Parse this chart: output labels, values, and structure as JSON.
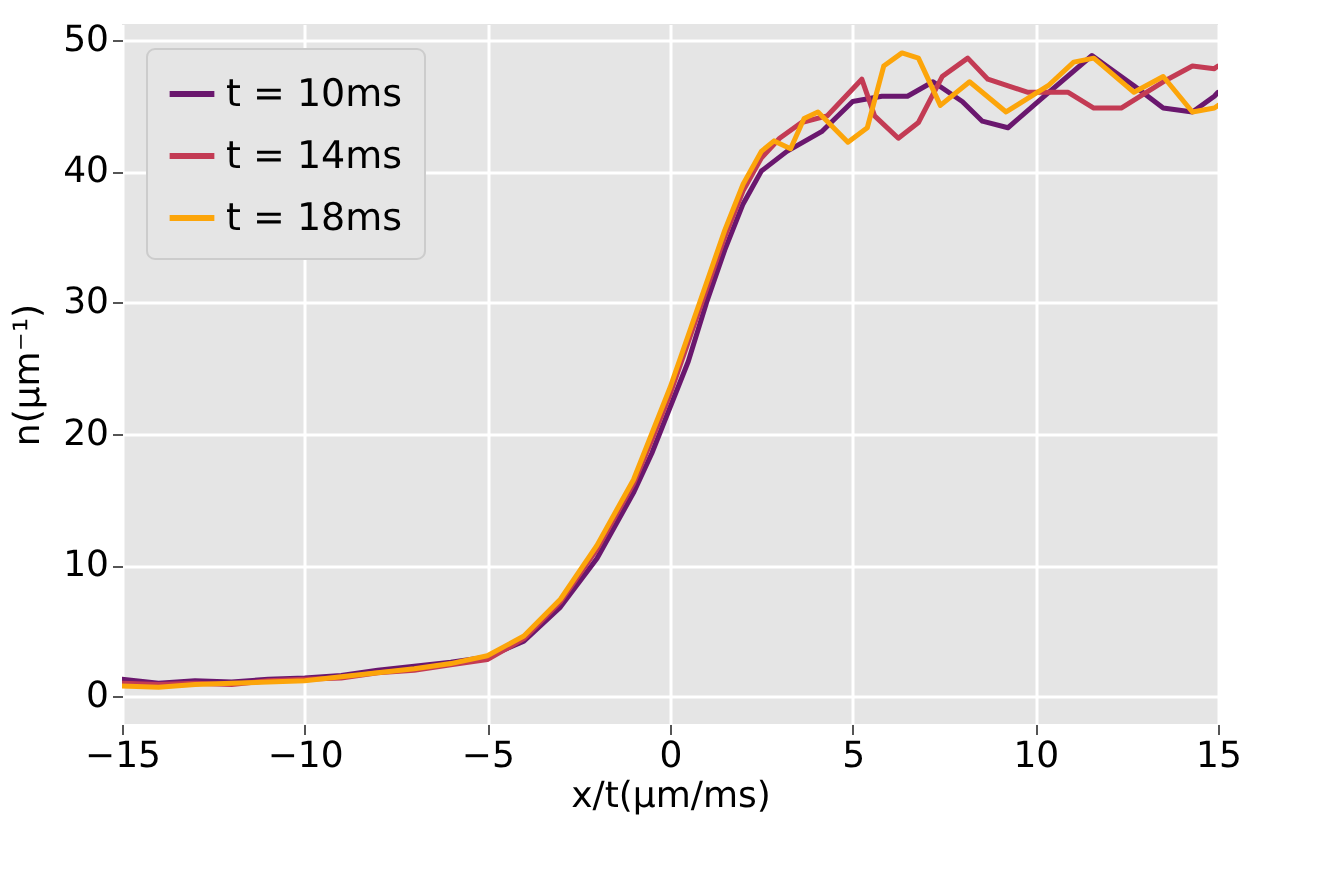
{
  "chart_data": {
    "type": "line",
    "xlabel": "x/t(μm/ms)",
    "ylabel": "n(μm⁻¹)",
    "xlim": [
      -15,
      15
    ],
    "ylim": [
      -2.1,
      51.2
    ],
    "xticks": [
      -15,
      -10,
      -5,
      0,
      5,
      10,
      15
    ],
    "yticks": [
      0,
      10,
      20,
      30,
      40,
      50
    ],
    "grid": true,
    "legend": "top left",
    "line_style": "solid",
    "series": [
      {
        "name": "t = 10ms",
        "color": "#6a176e",
        "x": [
          -15,
          -14,
          -13,
          -12,
          -11,
          -10,
          -9,
          -8,
          -7,
          -6,
          -5,
          -4,
          -3,
          -2,
          -1,
          -0.5,
          0,
          0.5,
          1,
          1.5,
          2,
          2.5,
          3.2,
          4.15,
          5.0,
          5.8,
          6.5,
          7.2,
          8.0,
          8.55,
          9.25,
          10.2,
          11.55,
          12.7,
          13.5,
          14.3,
          14.9,
          15
        ],
        "values": [
          1.3,
          1.0,
          1.2,
          1.1,
          1.3,
          1.4,
          1.6,
          2.0,
          2.3,
          2.6,
          3.0,
          4.2,
          6.8,
          10.5,
          15.5,
          18.5,
          22,
          25.5,
          30,
          34,
          37.5,
          40,
          41.5,
          43,
          45.3,
          45.7,
          45.7,
          46.8,
          45.3,
          43.8,
          43.3,
          45.6,
          48.8,
          46.5,
          44.8,
          44.5,
          45.7,
          46
        ]
      },
      {
        "name": "t = 14ms",
        "color": "#c33b54",
        "x": [
          -15,
          -14,
          -13,
          -12,
          -11,
          -10,
          -9,
          -8,
          -7,
          -6,
          -5,
          -4,
          -3,
          -2,
          -1,
          -0.5,
          0,
          0.5,
          1,
          1.5,
          2,
          2.5,
          3.0,
          3.6,
          4.3,
          5.25,
          5.6,
          6.25,
          6.8,
          7.45,
          8.15,
          8.7,
          9.8,
          10.9,
          11.6,
          12.35,
          13.5,
          14.3,
          14.9,
          15
        ],
        "values": [
          1.0,
          0.9,
          1.0,
          0.9,
          1.2,
          1.3,
          1.4,
          1.8,
          2.0,
          2.4,
          2.8,
          4.4,
          7.2,
          11.2,
          16.2,
          19.5,
          23,
          27,
          31,
          35,
          38.5,
          41,
          42.5,
          43.7,
          44.2,
          47,
          44.2,
          42.5,
          43.7,
          47.2,
          48.6,
          47,
          46,
          46,
          44.8,
          44.8,
          46.8,
          48,
          47.8,
          48
        ]
      },
      {
        "name": "t = 18ms",
        "color": "#fca50a",
        "x": [
          -15,
          -14,
          -13,
          -12,
          -11,
          -10,
          -9,
          -8,
          -7,
          -6,
          -5,
          -4,
          -3,
          -2,
          -1,
          -0.5,
          0,
          0.5,
          1,
          1.5,
          2,
          2.5,
          2.85,
          3.3,
          3.67,
          4.05,
          4.87,
          5.4,
          5.85,
          6.35,
          6.8,
          7.4,
          8.2,
          9.2,
          10.35,
          11.05,
          11.6,
          12.7,
          13.5,
          14.3,
          14.9,
          15
        ],
        "values": [
          0.8,
          0.7,
          0.9,
          1.0,
          1.1,
          1.2,
          1.5,
          1.8,
          2.1,
          2.5,
          3.1,
          4.6,
          7.4,
          11.5,
          16.5,
          20,
          23.5,
          27.5,
          31.5,
          35.5,
          39,
          41.5,
          42.3,
          41.7,
          44,
          44.5,
          42.2,
          43.3,
          48,
          49,
          48.6,
          45,
          46.8,
          44.5,
          46.5,
          48.3,
          48.6,
          46,
          47.2,
          44.5,
          44.8,
          45
        ]
      }
    ]
  }
}
